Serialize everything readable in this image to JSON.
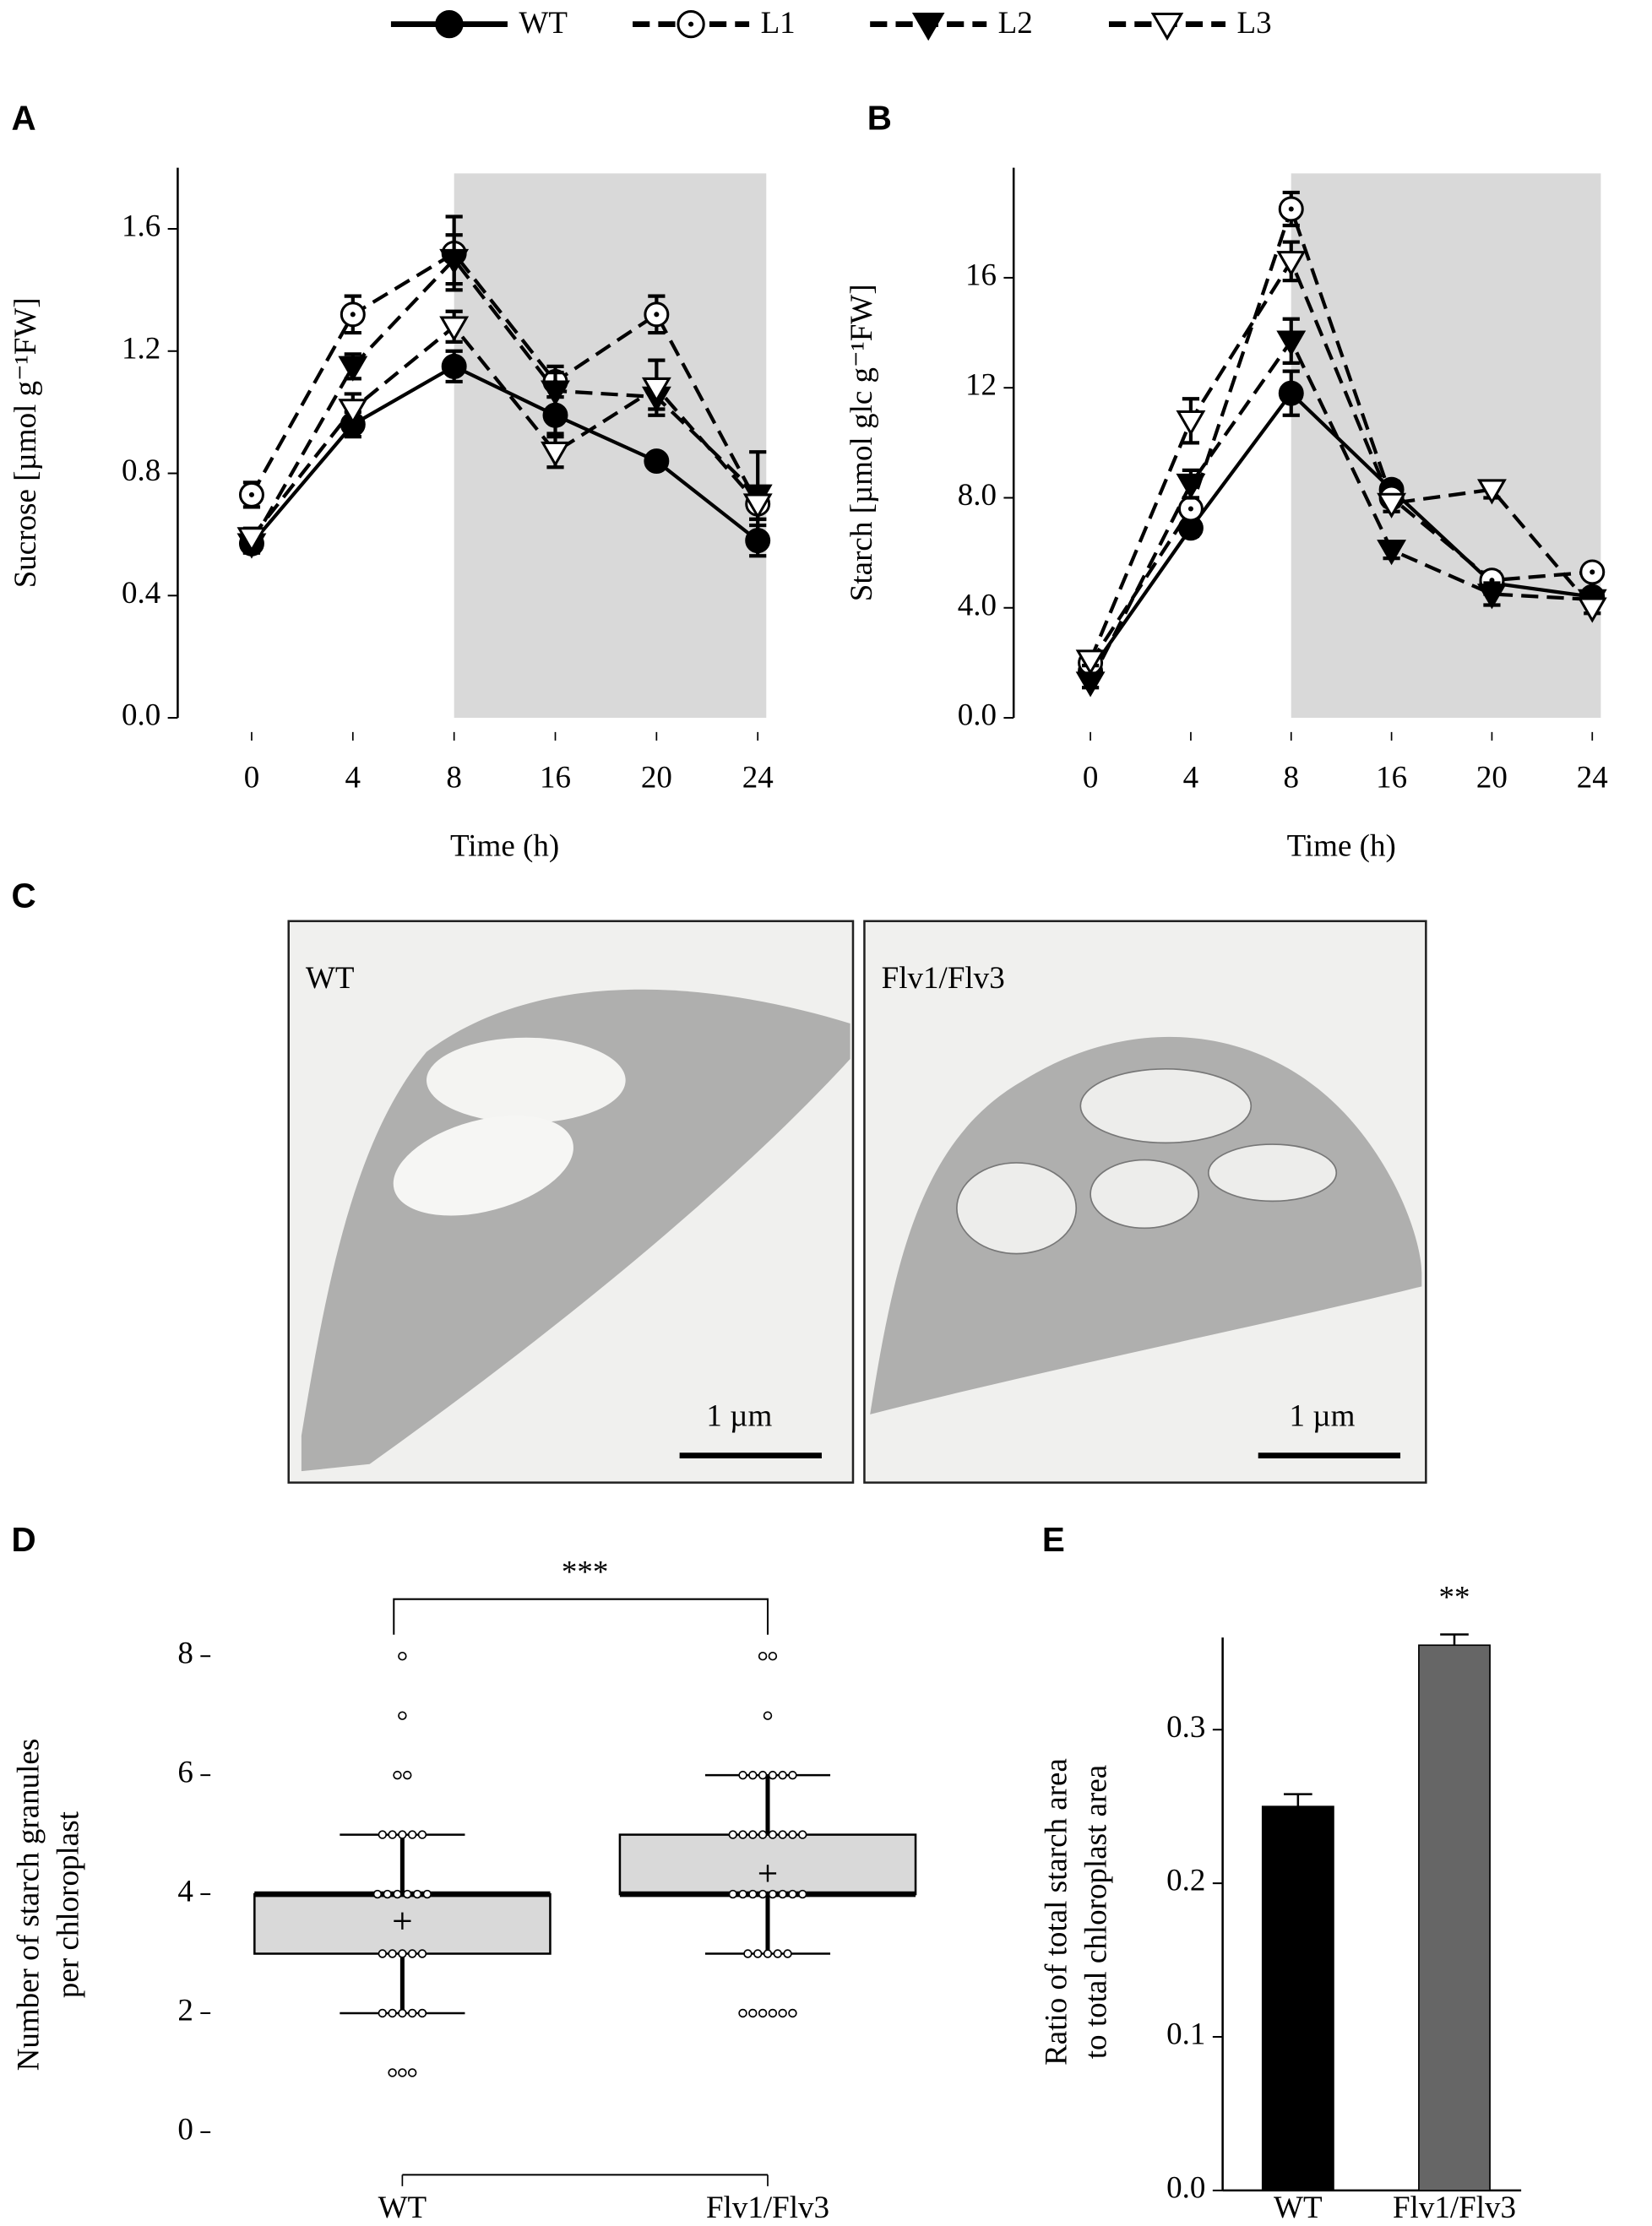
{
  "chart_data": [
    {
      "panel": "A",
      "type": "line",
      "x_label": "Time (h)",
      "y_label": "Sucrose [µmol g⁻¹FW]",
      "categories": [
        "0",
        "4",
        "8",
        "16",
        "20",
        "24"
      ],
      "shade": [
        "8",
        "24"
      ],
      "ylim": [
        0,
        1.8
      ],
      "yticks": [
        {
          "value": 0,
          "label": "0.0"
        },
        0.4,
        0.8,
        1.2,
        1.6
      ],
      "series": [
        {
          "name": "WT",
          "color": "#000000",
          "marker": "circle-filled",
          "dashed": false,
          "values": [
            0.57,
            0.96,
            1.15,
            0.99,
            0.84,
            0.58
          ],
          "errors": [
            0.03,
            0.04,
            0.05,
            0.06,
            0.02,
            0.05
          ]
        },
        {
          "name": "L1",
          "color": "#000000",
          "marker": "circle-open",
          "dashed": true,
          "values": [
            0.73,
            1.32,
            1.52,
            1.1,
            1.32,
            0.7
          ],
          "errors": [
            0.04,
            0.06,
            0.12,
            0.05,
            0.06,
            0.05
          ]
        },
        {
          "name": "L2",
          "color": "#000000",
          "marker": "triangle-filled",
          "dashed": true,
          "values": [
            0.57,
            1.15,
            1.5,
            1.07,
            1.05,
            0.73
          ],
          "errors": [
            0.03,
            0.04,
            0.08,
            0.06,
            0.04,
            0.14
          ]
        },
        {
          "name": "L3",
          "color": "#000000",
          "marker": "triangle-open",
          "dashed": true,
          "values": [
            0.59,
            1.01,
            1.28,
            0.87,
            1.08,
            0.7
          ],
          "errors": [
            0.03,
            0.05,
            0.05,
            0.05,
            0.09,
            0.05
          ]
        }
      ]
    },
    {
      "panel": "B",
      "type": "line",
      "x_label": "Time (h)",
      "y_label": "Starch [µmol glc g⁻¹FW]",
      "categories": [
        "0",
        "4",
        "8",
        "16",
        "20",
        "24"
      ],
      "shade": [
        "8",
        "24"
      ],
      "ylim": [
        0,
        20
      ],
      "yticks": [
        {
          "value": 0,
          "label": "0.0"
        },
        {
          "value": 4,
          "label": "4.0"
        },
        {
          "value": 8,
          "label": "8.0"
        },
        12,
        16
      ],
      "series": [
        {
          "name": "WT",
          "color": "#000000",
          "marker": "circle-filled",
          "dashed": false,
          "values": [
            1.7,
            6.9,
            11.8,
            8.3,
            4.9,
            4.4
          ],
          "errors": [
            0.2,
            0.3,
            0.8,
            0.3,
            0.4,
            0.2
          ]
        },
        {
          "name": "L1",
          "color": "#000000",
          "marker": "circle-open",
          "dashed": true,
          "values": [
            2.0,
            7.6,
            18.5,
            8.0,
            5.0,
            5.3
          ],
          "errors": [
            0.2,
            0.4,
            0.6,
            0.3,
            0.3,
            0.2
          ]
        },
        {
          "name": "L2",
          "color": "#000000",
          "marker": "triangle-filled",
          "dashed": true,
          "values": [
            1.3,
            8.5,
            13.7,
            6.1,
            4.5,
            4.3
          ],
          "errors": [
            0.2,
            0.5,
            0.8,
            0.3,
            0.4,
            0.2
          ]
        },
        {
          "name": "L3",
          "color": "#000000",
          "marker": "triangle-open",
          "dashed": true,
          "values": [
            2.1,
            10.8,
            16.6,
            7.8,
            8.3,
            4.0
          ],
          "errors": [
            0.2,
            0.8,
            0.7,
            0.3,
            0.3,
            0.2
          ]
        }
      ]
    },
    {
      "panel": "D",
      "type": "box",
      "y_label": [
        "Number of starch granules",
        "per chloroplast"
      ],
      "annotation": "***",
      "categories": [
        "WT",
        "Flv1/Flv3"
      ],
      "ylim": [
        0,
        8.6
      ],
      "yticks": [
        0,
        2,
        4,
        6,
        8
      ],
      "box_color": "#d9d9d9",
      "boxes": [
        {
          "whisker_low": 2,
          "q1": 3,
          "median": 4,
          "q3": 4,
          "whisker_high": 5,
          "mean": 3.55,
          "points": [
            8,
            7,
            6,
            6,
            5,
            5,
            5,
            5,
            5,
            4,
            4,
            4,
            4,
            4,
            4,
            3,
            3,
            3,
            3,
            3,
            2,
            2,
            2,
            2,
            2,
            1,
            1,
            1
          ]
        },
        {
          "whisker_low": 3,
          "q1": 4,
          "median": 4,
          "q3": 5,
          "whisker_high": 6,
          "mean": 4.35,
          "points": [
            8,
            8,
            7,
            6,
            6,
            6,
            6,
            6,
            6,
            5,
            5,
            5,
            5,
            5,
            5,
            5,
            5,
            4,
            4,
            4,
            4,
            4,
            4,
            4,
            4,
            3,
            3,
            3,
            3,
            3,
            2,
            2,
            2,
            2,
            2,
            2
          ]
        }
      ]
    },
    {
      "panel": "E",
      "type": "bar",
      "y_label": [
        "Ratio of total starch area",
        "to total chloroplast area"
      ],
      "annotation": "**",
      "categories": [
        "WT",
        "Flv1/Flv3"
      ],
      "values": [
        0.25,
        0.355
      ],
      "errors": [
        0.008,
        0.007
      ],
      "colors": [
        "#000000",
        "#666666"
      ],
      "ylim": [
        0,
        0.36
      ],
      "yticks": [
        {
          "value": 0,
          "label": "0.0"
        },
        0.1,
        0.2,
        0.3
      ]
    }
  ],
  "micrographs": {
    "panel": "C",
    "images": [
      {
        "label": "WT",
        "scale": "1 µm"
      },
      {
        "label": "Flv1/Flv3",
        "scale": "1 µm"
      }
    ]
  }
}
